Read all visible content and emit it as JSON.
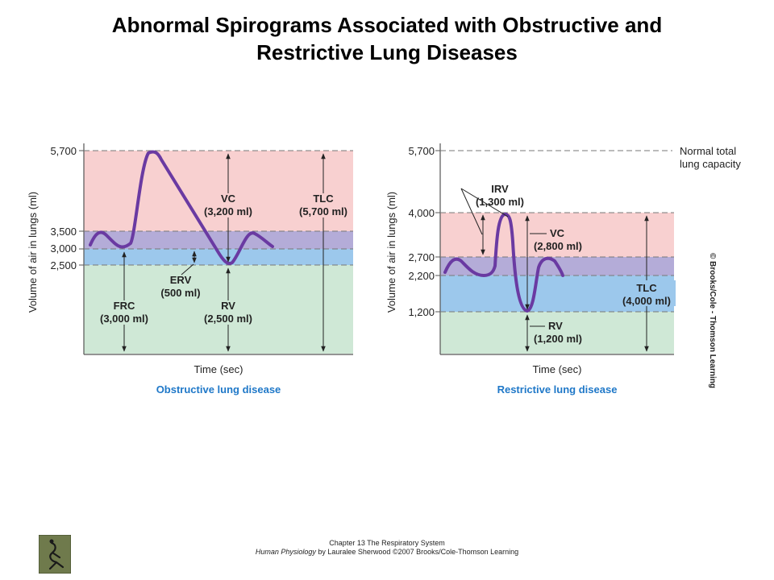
{
  "title_line1": "Abnormal Spirograms Associated with Obstructive and",
  "title_line2": "Restrictive Lung Diseases",
  "colors": {
    "pink": "#f8d0d0",
    "lavender": "#b4acd8",
    "blue": "#9cc8ec",
    "green": "#cfe8d6",
    "trace": "#6a3aa2",
    "caption": "#1f78c8"
  },
  "obstructive": {
    "caption": "Obstructive lung disease",
    "ylabel": "Volume of air in lungs (ml)",
    "xlabel": "Time (sec)",
    "ticks": [
      "5,700",
      "3,500",
      "3,000",
      "2,500"
    ],
    "labels": {
      "vc": [
        "VC",
        "(3,200 ml)"
      ],
      "tlc": [
        "TLC",
        "(5,700 ml)"
      ],
      "erv": [
        "ERV",
        "(500 ml)"
      ],
      "frc": [
        "FRC",
        "(3,000 ml)"
      ],
      "rv": [
        "RV",
        "(2,500 ml)"
      ]
    }
  },
  "restrictive": {
    "caption": "Restrictive lung disease",
    "ylabel": "Volume of air in lungs (ml)",
    "xlabel": "Time (sec)",
    "ticks": [
      "5,700",
      "4,000",
      "2,700",
      "2,200",
      "1,200"
    ],
    "labels": {
      "irv": [
        "IRV",
        "(1,300 ml)"
      ],
      "vc": [
        "VC",
        "(2,800 ml)"
      ],
      "tlc": [
        "TLC",
        "(4,000 ml)"
      ],
      "rv": [
        "RV",
        "(1,200 ml)"
      ],
      "normal": [
        "Normal total",
        "lung capacity"
      ]
    }
  },
  "credit": "© Brooks/Cole - Thomson Learning",
  "footer_line1": "Chapter 13 The Respiratory System",
  "footer_italic": "Human Physiology",
  "footer_rest": " by Lauralee Sherwood ©2007 Brooks/Cole-Thomson Learning"
}
